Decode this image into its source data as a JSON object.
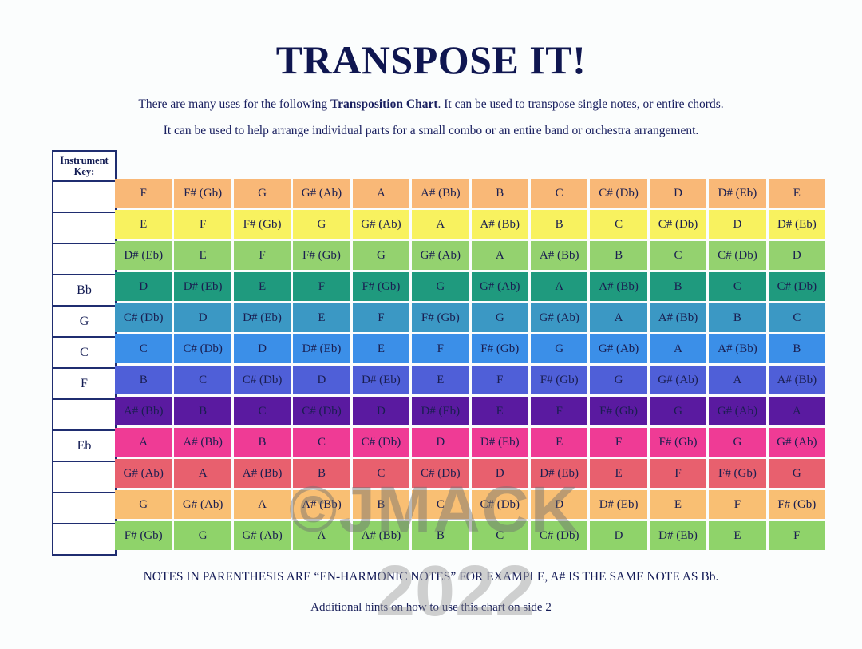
{
  "title": "TRANSPOSE IT!",
  "intro": {
    "line1_pre": "There are many uses for the following ",
    "line1_bold": "Transposition Chart",
    "line1_post": ".  It can be used to transpose single notes, or entire chords.",
    "line2": "It can be used to help arrange individual parts for a small combo or an entire band or orchestra arrangement."
  },
  "instrument_key": {
    "header_line1": "Instrument",
    "header_line2": "Key:",
    "rows": [
      "",
      "",
      "",
      "Bb",
      "G",
      "C",
      "F",
      "",
      "Eb",
      "",
      "",
      ""
    ]
  },
  "chart_data": {
    "type": "table",
    "title": "Transposition Chart",
    "row_colors": [
      "#f9b877",
      "#f8f25f",
      "#94d26f",
      "#1f9a7e",
      "#3b98c4",
      "#3b8fe8",
      "#4f5fd8",
      "#5a1aa0",
      "#ef3b95",
      "#e8606e",
      "#f9bf73",
      "#8fd36a"
    ],
    "rows": [
      [
        "F",
        "F# (Gb)",
        "G",
        "G# (Ab)",
        "A",
        "A# (Bb)",
        "B",
        "C",
        "C# (Db)",
        "D",
        "D# (Eb)",
        "E"
      ],
      [
        "E",
        "F",
        "F# (Gb)",
        "G",
        "G# (Ab)",
        "A",
        "A# (Bb)",
        "B",
        "C",
        "C# (Db)",
        "D",
        "D# (Eb)"
      ],
      [
        "D# (Eb)",
        "E",
        "F",
        "F# (Gb)",
        "G",
        "G# (Ab)",
        "A",
        "A# (Bb)",
        "B",
        "C",
        "C# (Db)",
        "D"
      ],
      [
        "D",
        "D# (Eb)",
        "E",
        "F",
        "F# (Gb)",
        "G",
        "G# (Ab)",
        "A",
        "A# (Bb)",
        "B",
        "C",
        "C# (Db)"
      ],
      [
        "C# (Db)",
        "D",
        "D# (Eb)",
        "E",
        "F",
        "F# (Gb)",
        "G",
        "G# (Ab)",
        "A",
        "A# (Bb)",
        "B",
        "C"
      ],
      [
        "C",
        "C# (Db)",
        "D",
        "D# (Eb)",
        "E",
        "F",
        "F# (Gb)",
        "G",
        "G# (Ab)",
        "A",
        "A# (Bb)",
        "B"
      ],
      [
        "B",
        "C",
        "C# (Db)",
        "D",
        "D# (Eb)",
        "E",
        "F",
        "F# (Gb)",
        "G",
        "G# (Ab)",
        "A",
        "A# (Bb)"
      ],
      [
        "A# (Bb)",
        "B",
        "C",
        "C# (Db)",
        "D",
        "D# (Eb)",
        "E",
        "F",
        "F# (Gb)",
        "G",
        "G# (Ab)",
        "A"
      ],
      [
        "A",
        "A# (Bb)",
        "B",
        "C",
        "C# (Db)",
        "D",
        "D# (Eb)",
        "E",
        "F",
        "F# (Gb)",
        "G",
        "G# (Ab)"
      ],
      [
        "G# (Ab)",
        "A",
        "A# (Bb)",
        "B",
        "C",
        "C# (Db)",
        "D",
        "D# (Eb)",
        "E",
        "F",
        "F# (Gb)",
        "G"
      ],
      [
        "G",
        "G# (Ab)",
        "A",
        "A# (Bb)",
        "B",
        "C",
        "C# (Db)",
        "D",
        "D# (Eb)",
        "E",
        "F",
        "F# (Gb)"
      ],
      [
        "F# (Gb)",
        "G",
        "G# (Ab)",
        "A",
        "A# (Bb)",
        "B",
        "C",
        "C# (Db)",
        "D",
        "D# (Eb)",
        "E",
        "F"
      ]
    ]
  },
  "footer": {
    "note": "NOTES IN PARENTHESIS ARE “EN-HARMONIC NOTES”  FOR EXAMPLE, A# IS THE SAME NOTE AS Bb.",
    "hint": "Additional hints on how to use this chart on side 2"
  },
  "watermark": {
    "line1": "©JMACK",
    "line2": "2022"
  }
}
